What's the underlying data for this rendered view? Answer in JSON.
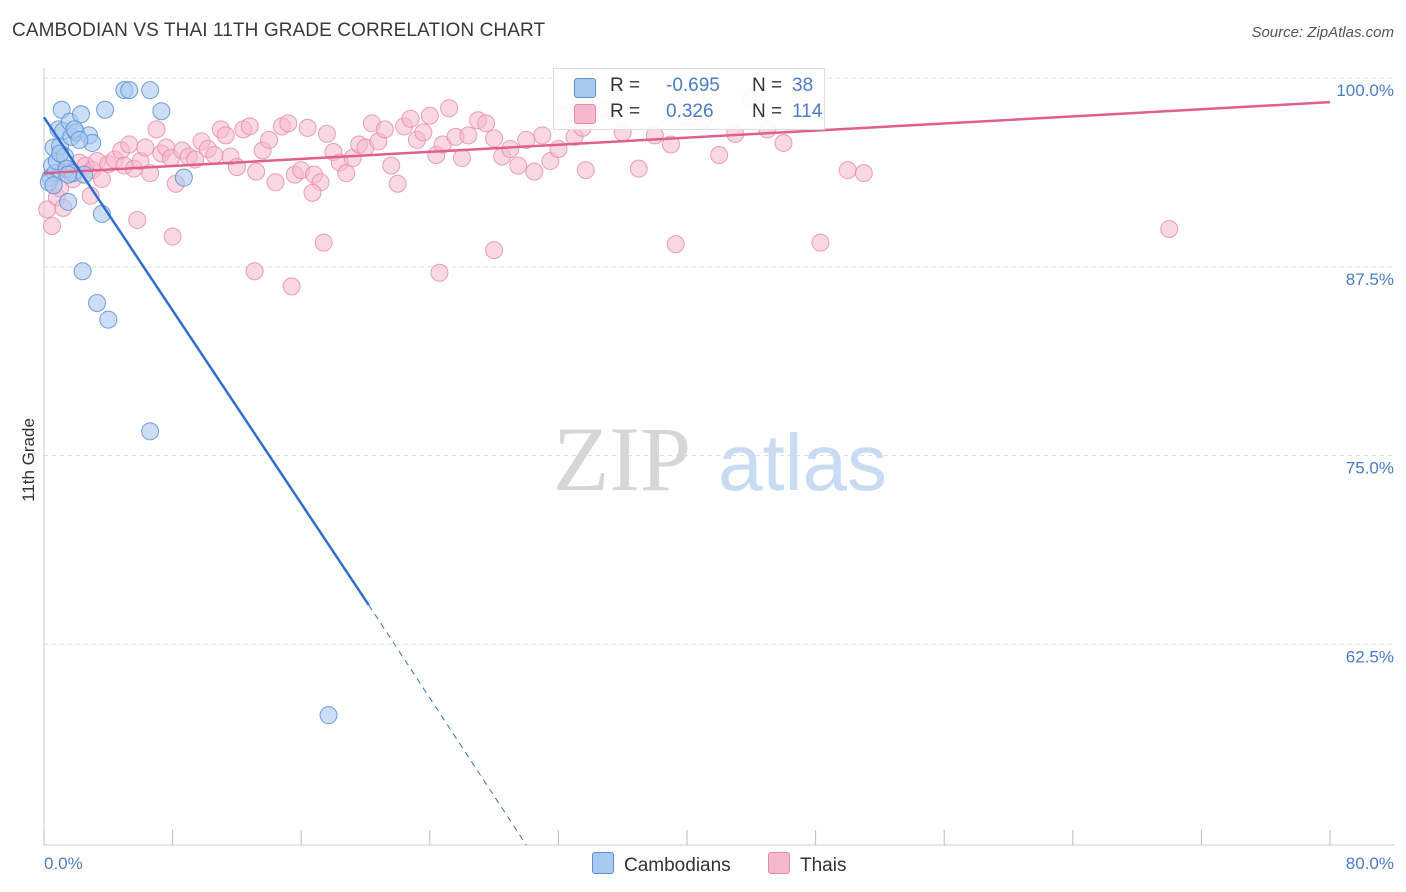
{
  "title": "CAMBODIAN VS THAI 11TH GRADE CORRELATION CHART",
  "source": "Source: ZipAtlas.com",
  "watermark": {
    "zip": "ZIP",
    "atlas": "atlas"
  },
  "legend": {
    "rows": [
      {
        "r_label": "R =",
        "r_value": "-0.695",
        "n_label": "N =",
        "n_value": "38"
      },
      {
        "r_label": "R =",
        "r_value": "0.326",
        "n_label": "N =",
        "n_value": "114"
      }
    ]
  },
  "bottom_legend": {
    "cambodians": "Cambodians",
    "thais": "Thais"
  },
  "colors": {
    "cambodian_fill": "#a9c8ef",
    "cambodian_stroke": "#5b8fd6",
    "cambodian_line": "#2f6fcc",
    "thai_fill": "#f6b8cc",
    "thai_stroke": "#e48aa8",
    "thai_line": "#e0608a",
    "tick_text": "#4a7cc7",
    "grid": "#dddddd"
  },
  "chart_data": {
    "type": "scatter",
    "title": "CAMBODIAN VS THAI 11TH GRADE CORRELATION CHART",
    "xlabel": "",
    "ylabel": "11th Grade",
    "xlim": [
      0,
      80
    ],
    "ylim": [
      50,
      101
    ],
    "x_tick_labels": [
      "0.0%",
      "80.0%"
    ],
    "y_ticks": [
      100,
      87.5,
      75,
      62.5
    ],
    "y_tick_labels": [
      "100.0%",
      "87.5%",
      "75.0%",
      "62.5%"
    ],
    "grid": true,
    "legend_position": "top-center",
    "series": [
      {
        "name": "Cambodians",
        "r": -0.695,
        "n": 38,
        "trend": {
          "x0": 0,
          "y0": 98.2,
          "x1": 20.2,
          "y1": 65.9,
          "dash_to_x": 30,
          "dash_to_y": 50
        },
        "points": [
          [
            0.4,
            94.2
          ],
          [
            0.5,
            95.0
          ],
          [
            0.6,
            96.2
          ],
          [
            0.7,
            94.5
          ],
          [
            0.8,
            95.3
          ],
          [
            0.9,
            97.4
          ],
          [
            1.0,
            96.3
          ],
          [
            1.1,
            98.7
          ],
          [
            1.2,
            97.3
          ],
          [
            1.3,
            95.6
          ],
          [
            1.4,
            94.8
          ],
          [
            1.5,
            92.6
          ],
          [
            1.6,
            97.9
          ],
          [
            1.7,
            96.9
          ],
          [
            1.8,
            94.5
          ],
          [
            2.0,
            97.2
          ],
          [
            2.3,
            98.4
          ],
          [
            2.5,
            94.4
          ],
          [
            2.8,
            97.0
          ],
          [
            3.0,
            96.5
          ],
          [
            3.3,
            85.9
          ],
          [
            3.6,
            91.8
          ],
          [
            3.8,
            98.7
          ],
          [
            4.0,
            84.8
          ],
          [
            2.4,
            88.0
          ],
          [
            5.0,
            100.0
          ],
          [
            5.3,
            100.0
          ],
          [
            6.6,
            100.0
          ],
          [
            6.6,
            77.4
          ],
          [
            7.3,
            98.6
          ],
          [
            8.7,
            94.2
          ],
          [
            17.7,
            58.6
          ],
          [
            0.3,
            93.9
          ],
          [
            0.6,
            93.7
          ],
          [
            1.0,
            95.8
          ],
          [
            1.9,
            97.4
          ],
          [
            2.2,
            96.7
          ],
          [
            1.5,
            94.4
          ]
        ]
      },
      {
        "name": "Thais",
        "r": 0.326,
        "n": 114,
        "trend": {
          "x0": 0,
          "y0": 94.5,
          "x1": 80,
          "y1": 99.2
        },
        "points": [
          [
            0.2,
            92.1
          ],
          [
            0.5,
            91.0
          ],
          [
            0.8,
            92.9
          ],
          [
            1.0,
            93.5
          ],
          [
            1.2,
            92.2
          ],
          [
            1.5,
            94.7
          ],
          [
            1.8,
            94.1
          ],
          [
            2.2,
            95.2
          ],
          [
            2.6,
            95.0
          ],
          [
            2.9,
            93.0
          ],
          [
            3.0,
            94.7
          ],
          [
            3.3,
            95.3
          ],
          [
            3.6,
            94.1
          ],
          [
            4.0,
            95.1
          ],
          [
            4.4,
            95.4
          ],
          [
            4.8,
            96.0
          ],
          [
            5.0,
            95.0
          ],
          [
            5.3,
            96.4
          ],
          [
            5.6,
            94.8
          ],
          [
            6.0,
            95.3
          ],
          [
            6.3,
            96.2
          ],
          [
            6.6,
            94.5
          ],
          [
            7.0,
            97.4
          ],
          [
            7.3,
            95.8
          ],
          [
            7.6,
            96.2
          ],
          [
            7.9,
            95.5
          ],
          [
            8.2,
            93.8
          ],
          [
            8.6,
            96.0
          ],
          [
            9.0,
            95.6
          ],
          [
            9.4,
            95.4
          ],
          [
            9.8,
            96.6
          ],
          [
            10.2,
            96.1
          ],
          [
            10.6,
            95.7
          ],
          [
            11.0,
            97.4
          ],
          [
            11.3,
            97.0
          ],
          [
            11.6,
            95.6
          ],
          [
            12.0,
            94.9
          ],
          [
            12.4,
            97.4
          ],
          [
            12.8,
            97.6
          ],
          [
            13.2,
            94.6
          ],
          [
            13.6,
            96.0
          ],
          [
            14.0,
            96.7
          ],
          [
            14.4,
            93.9
          ],
          [
            14.8,
            97.6
          ],
          [
            15.2,
            97.8
          ],
          [
            15.6,
            94.4
          ],
          [
            16.0,
            94.7
          ],
          [
            16.4,
            97.5
          ],
          [
            16.8,
            94.4
          ],
          [
            17.2,
            93.9
          ],
          [
            17.6,
            97.1
          ],
          [
            18.0,
            95.9
          ],
          [
            18.4,
            95.2
          ],
          [
            18.8,
            94.5
          ],
          [
            19.2,
            95.5
          ],
          [
            19.6,
            96.4
          ],
          [
            20.0,
            96.2
          ],
          [
            20.4,
            97.8
          ],
          [
            20.8,
            96.6
          ],
          [
            21.2,
            97.4
          ],
          [
            21.6,
            95.0
          ],
          [
            22.0,
            93.8
          ],
          [
            22.4,
            97.6
          ],
          [
            22.8,
            98.1
          ],
          [
            23.2,
            96.7
          ],
          [
            23.6,
            97.2
          ],
          [
            24.0,
            98.3
          ],
          [
            24.4,
            95.7
          ],
          [
            24.8,
            96.4
          ],
          [
            25.2,
            98.8
          ],
          [
            25.6,
            96.9
          ],
          [
            26.0,
            95.5
          ],
          [
            26.4,
            97.0
          ],
          [
            27.0,
            98.0
          ],
          [
            27.5,
            97.8
          ],
          [
            28.0,
            96.8
          ],
          [
            28.5,
            95.6
          ],
          [
            29.0,
            96.1
          ],
          [
            29.5,
            95.0
          ],
          [
            30.0,
            96.7
          ],
          [
            30.5,
            94.6
          ],
          [
            31.0,
            97.0
          ],
          [
            31.5,
            95.3
          ],
          [
            32.0,
            96.1
          ],
          [
            32.5,
            98.4
          ],
          [
            33.0,
            96.9
          ],
          [
            33.5,
            97.5
          ],
          [
            34.0,
            98.1
          ],
          [
            35.0,
            98.7
          ],
          [
            36.0,
            97.2
          ],
          [
            37.0,
            94.8
          ],
          [
            38.0,
            97.0
          ],
          [
            39.0,
            96.4
          ],
          [
            40.0,
            98.2
          ],
          [
            41.0,
            98.0
          ],
          [
            42.0,
            95.7
          ],
          [
            43.0,
            97.1
          ],
          [
            44.0,
            99.5
          ],
          [
            45.0,
            97.4
          ],
          [
            46.0,
            96.5
          ],
          [
            50.0,
            94.7
          ],
          [
            51.0,
            94.5
          ],
          [
            70.0,
            90.8
          ],
          [
            16.7,
            93.2
          ],
          [
            15.4,
            87.0
          ],
          [
            8.0,
            90.3
          ],
          [
            5.8,
            91.4
          ],
          [
            24.6,
            87.9
          ],
          [
            17.4,
            89.9
          ],
          [
            28.0,
            89.4
          ],
          [
            13.1,
            88.0
          ],
          [
            48.3,
            89.9
          ],
          [
            33.7,
            94.7
          ],
          [
            39.3,
            89.8
          ]
        ]
      }
    ]
  }
}
